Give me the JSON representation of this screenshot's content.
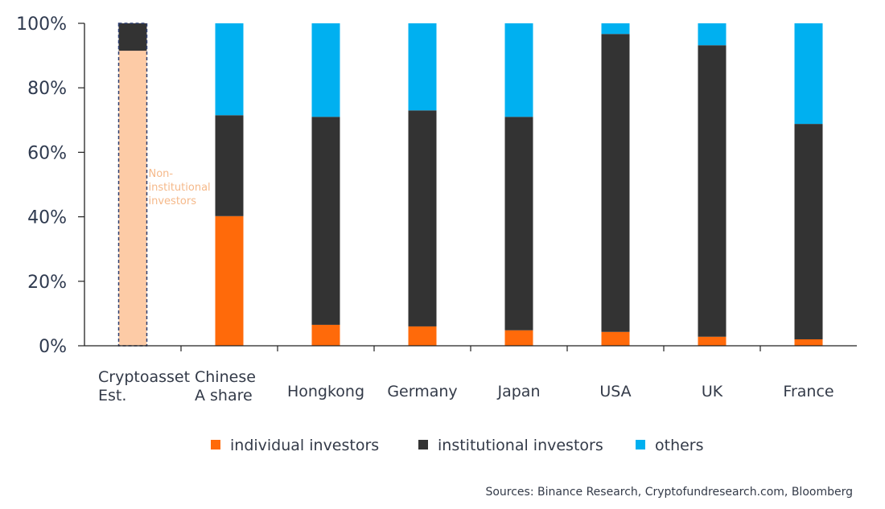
{
  "chart_data": {
    "type": "bar",
    "stacked": true,
    "title": "",
    "xlabel": "",
    "ylabel": "",
    "ylim": [
      0,
      100
    ],
    "y_ticks": [
      "0%",
      "20%",
      "40%",
      "60%",
      "80%",
      "100%"
    ],
    "categories": [
      [
        "Cryptoasset",
        "Est."
      ],
      [
        "Chinese",
        "A share"
      ],
      [
        "Hongkong"
      ],
      [
        "Germany"
      ],
      [
        "Japan"
      ],
      [
        "USA"
      ],
      [
        "UK"
      ],
      [
        "France"
      ]
    ],
    "series": [
      {
        "name": "individual investors",
        "color": "#ff6a0a",
        "values": [
          null,
          40.2,
          6.5,
          6.0,
          4.8,
          4.3,
          2.8,
          2.0
        ]
      },
      {
        "name": "institutional investors",
        "color": "#333333",
        "values": [
          8.5,
          31.3,
          64.5,
          67.0,
          66.2,
          92.4,
          90.4,
          66.8
        ]
      },
      {
        "name": "others",
        "color": "#00b0f0",
        "values": [
          0,
          28.5,
          29.0,
          27.0,
          29.0,
          3.3,
          6.8,
          31.2
        ]
      }
    ],
    "special": {
      "category_index": 0,
      "label": "Non-institutional investors",
      "label_lines": [
        "Non-",
        "institutional",
        "investors"
      ],
      "value": 91.5,
      "color": "#fdcba6",
      "outline": "dashed",
      "outline_color": "#2e3f70"
    },
    "legend": {
      "placement": "bottom",
      "items": [
        {
          "label": "individual investors",
          "color": "#ff6a0a"
        },
        {
          "label": "institutional investors",
          "color": "#333333"
        },
        {
          "label": "others",
          "color": "#00b0f0"
        }
      ]
    },
    "grid": false,
    "source": "Sources: Binance Research, Cryptofundresearch.com, Bloomberg"
  }
}
